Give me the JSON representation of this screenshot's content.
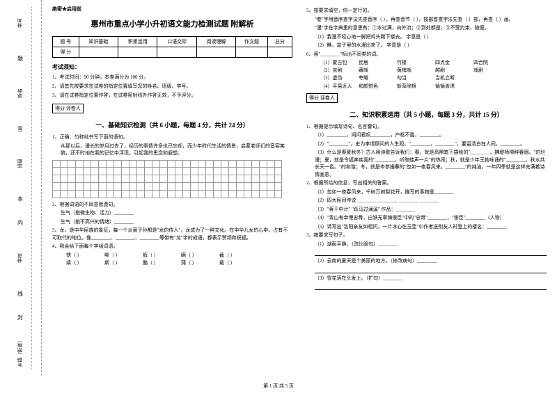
{
  "confidential": "绝密★启用前",
  "title": "惠州市重点小学小升初语文能力检测试题 附解析",
  "score_table": {
    "headers": [
      "题  号",
      "知识基础",
      "积累运用",
      "口语交际",
      "阅读理解",
      "作文题",
      "总分"
    ],
    "row2": "得  分"
  },
  "notice": {
    "title": "考试须知：",
    "items": [
      "1、考试时间：90 分钟，本卷满分为 100 分。",
      "2、请首先按要求在试卷的指定位置填写您的姓名、班级、学号。",
      "3、请在试卷指定位置作答，在试卷密封线外作答无效，不予评分。"
    ]
  },
  "scorer_label": "得分    评卷人",
  "section1": {
    "title": "一、基础知识检测（共 6 小题，每题 4 分，共计 24 分）",
    "q1": "1、正确、匀称地书写下面的语句。",
    "q1_text": "从那以后，漫长的岁月过去了，经历的事情许多也已忘却，而少年时代生活的情景，启蒙老师们的音容笑貌，还不时地在我的记忆中浮现，引起我的思念和遐想。",
    "q2": "2、根据词语的不同意思造句。",
    "q2a": "生气（指微生物、活力）________",
    "q2b": "生气（指不高兴的情绪）________",
    "q3": "3、龙，是中华民族的象征，每一个炎黄子孙都是\"龙的传人\"，龙成为了一种文化。在中华儿女的心中，占有不可取代的地位。像________、________、________等带有\"龙\"字的成语，都表示赞颂和祝福。",
    "q4": "4、我会给下面每个字组词语。",
    "q4_chars": [
      [
        "锈",
        "（",
        "）"
      ],
      [
        "嘶",
        "（",
        "）"
      ],
      [
        "裤",
        "（",
        "）"
      ],
      [
        "瞒",
        "（",
        "）"
      ],
      [
        "截",
        "（",
        "）"
      ],
      [
        "续",
        "（",
        "）"
      ],
      [
        "斯",
        "（",
        "）"
      ],
      [
        "酷",
        "（",
        "）"
      ],
      [
        "蒲",
        "（",
        "）"
      ],
      [
        "载",
        "（",
        "）"
      ]
    ]
  },
  "col2": {
    "q5": "5、按要求填空，你一定行的。",
    "q5a": "\"巷\"字用音序查字法先查音序（        ），再查音节（        ），按部首查字法先查（        ）部，再查（        ）画。",
    "q5b": "\"漫\"字在字典里的意思有：①水过满，向外流；②到处都是；③不受约束，随便。",
    "q5b1": "（1）我漫不经心地一脚把鸡头踢下楼去。      字意是（        ）",
    "q5b2": "（2）瞧，盆子里的水漫出来了。              字意是（        ）",
    "q6": "6、用\"________\"标出不同类的词。",
    "q6_rows": [
      [
        "（1）蒙古包",
        "民居",
        "竹楼",
        "四点金",
        "四合院"
      ],
      [
        "（2）京剧",
        "藏戏",
        "黄梅戏",
        "越剧",
        "戏剧"
      ],
      [
        "（3）虚伪",
        "夸耀",
        "勾当",
        "当机立断",
        ""
      ],
      [
        "（4）平易近人",
        "和颜悦色",
        "斩草除根",
        "循循善诱",
        ""
      ]
    ],
    "section2_title": "二、知识积累运用（共 5 小题，每题 3 分，共计 15 分）",
    "s2q1": "1、根据提示填写诗句、名言警句。",
    "s2q1_items": [
      "（1）________，闻问君叹________，户枢不蠹，________。",
      "（2）\"________\"，史为李谓顾问的人生观。\"________，________\"，要留清白在人间，________。",
      "（3）什么是春夏秋冬？古人用诗歌告诉我们：春，就是高鼎笔下描绘的\"________，拂堤杨柳醉春烟。\"的烂漫；夏，就是令狐奔疾喜的\"________，听取蛙声一片\"的热闹；秋，就是少年王勃咏诵的\"________，秋水共长天一色。\"的和谐；冬，就是岑参描摹的\"忽如一夜春风来，________\"的纯洁，一年四季就是这样充满着诗情画意。"
    ],
    "s2q2": "2、根据所给的信息，写出相关的答案。",
    "s2q2_items": [
      "（1）忽如一夜春风来，千树万树梨花开，描写的事物是________",
      "（2）四大民间传说 ________ ________ ________ ________",
      "（3）\"蒋干中计\" \"跃马过澜溪\" 作品：________",
      "（4）\"青山有幸埋忠骨，白铁无辜铸佞臣\"中的\"忠骨\"________，\"佞臣\"________（人物）",
      "（5）请写出\"洛阳亲友如相问，一片冰心在玉壶\"中作者送别友人时登上的楼名：________"
    ],
    "s2q3": "3、按要求写句子。",
    "s2q3_items": [
      "（1）湖面平静。（改比喻句）________",
      "（2）云南的夏天是个美丽的地方。（修改病句）________",
      "（3）雪花落在头发上。（扩句）________"
    ]
  },
  "binding": {
    "labels": [
      "学号",
      "姓名",
      "班级",
      "学校",
      "乡镇（街道）"
    ],
    "chars": [
      "题",
      "答",
      "本",
      "内",
      "线",
      "封"
    ]
  },
  "footer": "第 1 页 共 5 页"
}
